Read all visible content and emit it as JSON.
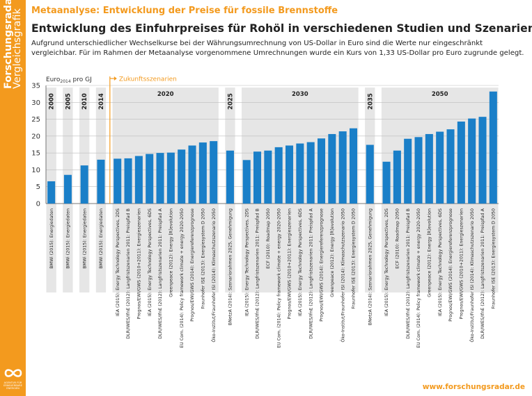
{
  "sidebar": {
    "brand_bold": "Forschungsradar",
    "brand_light": "Vergleichsgrafik",
    "logo_text": "AGENTUR FÜR ERNEUERBARE ENERGIEN"
  },
  "header": {
    "kicker": "Metaanalyse: Entwicklung der Preise für fossile Brennstoffe",
    "title": "Entwicklung des Einfuhrpreises für Rohöl in verschiedenen Studien und Szenarien",
    "subtitle": "Aufgrund unterschiedlicher Wechselkurse bei der Währungsumrechnung von US-Dollar in Euro sind die Werte nur eingeschränkt vergleichbar. Für im Rahmen der Metaanalyse vorgenommene Umrechnungen wurde ein Kurs von 1,33 US-Dollar pro Euro zugrunde gelegt."
  },
  "footer": {
    "url": "www.forschungsradar.de"
  },
  "colors": {
    "accent": "#f39a1e",
    "bar": "#1a7fc8",
    "band": "#e6e6e6"
  },
  "chart_data": {
    "type": "bar",
    "ylabel": "Euro2014 pro GJ",
    "ylim": [
      0,
      35
    ],
    "yticks": [
      0,
      5,
      10,
      15,
      20,
      25,
      30,
      35
    ],
    "future_marker": "Zukunftsszenarien",
    "groups": [
      {
        "label": "2000",
        "bars": [
          {
            "name": "BMWi (2015): Energiedaten",
            "value": 6.6
          }
        ]
      },
      {
        "label": "2005",
        "bars": [
          {
            "name": "BMWi (2015): Energiedaten",
            "value": 8.5
          }
        ]
      },
      {
        "label": "2010",
        "bars": [
          {
            "name": "BMWi (2015): Energiedaten",
            "value": 11.3
          }
        ]
      },
      {
        "label": "2014",
        "bars": [
          {
            "name": "BMWi (2015): Energiedaten",
            "value": 13.0
          }
        ]
      },
      {
        "label": "2020",
        "bars": [
          {
            "name": "IEA (2015): Energy Technology Perspectives, 2DS",
            "value": 13.3
          },
          {
            "name": "DLR/IWES/IfnE (2012): Langfristszenarien 2011: Preispfad B",
            "value": 13.4
          },
          {
            "name": "Prognos/EWI/GWS (2010+2011): Energieszenarien",
            "value": 14.1
          },
          {
            "name": "IEA (2015): Energy Technology Perspectives, 6DS",
            "value": 14.7
          },
          {
            "name": "DLR/IWES/IfnE (2012): Langfristszenarien 2011: Preispfad A",
            "value": 15.0
          },
          {
            "name": "Greenpeace (2012): Energy [R]evolution",
            "value": 15.1
          },
          {
            "name": "EU Com. (2014): Policy framework climate + energy 2020-2050",
            "value": 16.0
          },
          {
            "name": "Prognos/EWI/GWS (2014): Energiereferenzprognose",
            "value": 17.2
          },
          {
            "name": "Fraunhofer ISE (2013): Energiesystem D 2050",
            "value": 18.1
          },
          {
            "name": "Öko-Institut/Fraunhofer ISI (2014): Klimaschutzszenario 2050",
            "value": 18.5
          }
        ]
      },
      {
        "label": "2025",
        "bars": [
          {
            "name": "BNetzA (2014): Szenariorahmen 2025, Genehmigung",
            "value": 15.7
          }
        ]
      },
      {
        "label": "2030",
        "bars": [
          {
            "name": "IEA (2015): Energy Technology Perspectives, 2DS",
            "value": 12.9
          },
          {
            "name": "DLR/IWES/IfnE (2012): Langfristszenarien 2011: Preispfad B",
            "value": 15.4
          },
          {
            "name": "ECF (2010): Roadmap 2050",
            "value": 15.7
          },
          {
            "name": "EU Com. (2014): Policy framework climate + energy 2020-2050",
            "value": 16.7
          },
          {
            "name": "Prognos/EWI/GWS (2010+2011): Energieszenarien",
            "value": 17.2
          },
          {
            "name": "IEA (2015): Energy Technology Perspectives, 6DS",
            "value": 17.8
          },
          {
            "name": "DLR/IWES/IfnE (2012): Langfristszenarien 2011: Preispfad A",
            "value": 18.2
          },
          {
            "name": "Prognos/EWI/GWS (2014): Energiereferenzprognose",
            "value": 19.3
          },
          {
            "name": "Greenpeace (2012): Energy [R]evolution",
            "value": 20.6
          },
          {
            "name": "Öko-Institut/Fraunhofer ISI (2014): Klimaschutzszenario 2050",
            "value": 21.4
          },
          {
            "name": "Fraunhofer ISE (2013): Energiesystem D 2050",
            "value": 22.3
          }
        ]
      },
      {
        "label": "2035",
        "bars": [
          {
            "name": "BNetzA (2014): Szenariorahmen 2025, Genehmigung",
            "value": 17.4
          }
        ]
      },
      {
        "label": "2050",
        "bars": [
          {
            "name": "IEA (2015): Energy Technology Perspectives, 2DS",
            "value": 12.4
          },
          {
            "name": "ECF (2010): Roadmap 2050",
            "value": 15.7
          },
          {
            "name": "DLR/IWES/IfnE (2012): Langfristszenarien 2011: Preispfad B",
            "value": 19.2
          },
          {
            "name": "EU Com. (2014): Policy framework climate + energy 2020-2050",
            "value": 19.7
          },
          {
            "name": "Greenpeace (2012): Energy [R]evolution",
            "value": 20.6
          },
          {
            "name": "IEA (2015): Energy Technology Perspectives, 6DS",
            "value": 21.3
          },
          {
            "name": "Prognos/EWI/GWS (2014): Energiereferenzprognose",
            "value": 22.0
          },
          {
            "name": "Prognos/EWI/GWS (2010+2011): Energieszenarien",
            "value": 24.3
          },
          {
            "name": "Öko-Institut/Fraunhofer ISI (2014): Klimaschutzszenario 2050",
            "value": 25.2
          },
          {
            "name": "DLR/IWES/IfnE (2012): Langfristszenarien 2011: Preispfad A",
            "value": 25.7
          },
          {
            "name": "Fraunhofer ISE (2013): Energiesystem D 2050",
            "value": 33.2
          }
        ]
      }
    ]
  }
}
